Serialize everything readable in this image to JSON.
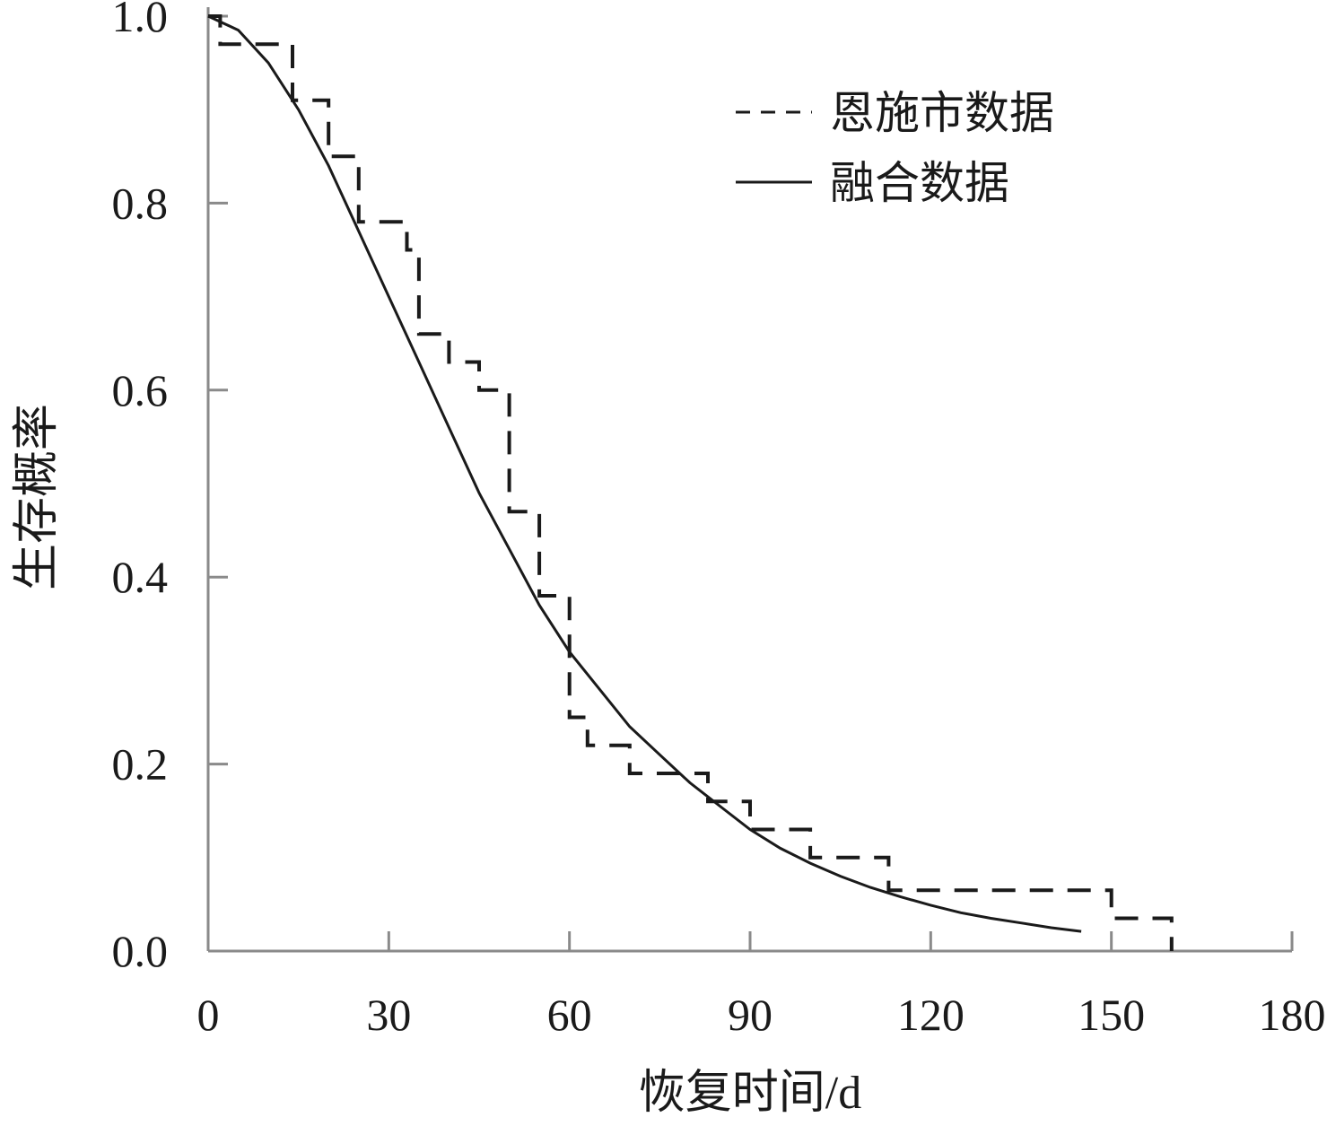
{
  "chart_data": {
    "type": "line",
    "xlabel": "恢复时间/d",
    "ylabel": "生存概率",
    "xlim": [
      0,
      180
    ],
    "ylim": [
      0,
      1.0
    ],
    "x_ticks": [
      "0",
      "30",
      "60",
      "90",
      "120",
      "150",
      "180"
    ],
    "y_ticks": [
      "0.0",
      "0.2",
      "0.4",
      "0.6",
      "0.8",
      "1.0"
    ],
    "x_tick_values": [
      0,
      30,
      60,
      90,
      120,
      150,
      180
    ],
    "y_tick_values": [
      0.0,
      0.2,
      0.4,
      0.6,
      0.8,
      1.0
    ],
    "grid": false,
    "legend_position": "top-right",
    "series": [
      {
        "name": "恩施市数据",
        "style": "dashed-step",
        "color": "#1a1a1a",
        "x": [
          0,
          2,
          2,
          14,
          14,
          20,
          20,
          25,
          25,
          33,
          33,
          35,
          35,
          40,
          40,
          45,
          45,
          50,
          50,
          55,
          55,
          60,
          60,
          63,
          63,
          70,
          70,
          83,
          83,
          90,
          90,
          100,
          100,
          113,
          113,
          150,
          150,
          160,
          160
        ],
        "y": [
          1.0,
          1.0,
          0.97,
          0.97,
          0.91,
          0.91,
          0.85,
          0.85,
          0.78,
          0.78,
          0.75,
          0.75,
          0.66,
          0.66,
          0.63,
          0.63,
          0.6,
          0.6,
          0.47,
          0.47,
          0.38,
          0.38,
          0.25,
          0.25,
          0.22,
          0.22,
          0.19,
          0.19,
          0.16,
          0.16,
          0.13,
          0.13,
          0.1,
          0.1,
          0.065,
          0.065,
          0.035,
          0.035,
          0.0
        ]
      },
      {
        "name": "融合数据",
        "style": "solid",
        "color": "#1a1a1a",
        "x": [
          0,
          5,
          10,
          15,
          20,
          25,
          30,
          35,
          40,
          45,
          50,
          55,
          60,
          65,
          70,
          75,
          80,
          85,
          90,
          95,
          100,
          105,
          110,
          115,
          120,
          125,
          130,
          135,
          140,
          145
        ],
        "y": [
          1.0,
          0.985,
          0.95,
          0.9,
          0.84,
          0.77,
          0.7,
          0.63,
          0.56,
          0.49,
          0.43,
          0.37,
          0.32,
          0.28,
          0.24,
          0.21,
          0.18,
          0.155,
          0.13,
          0.11,
          0.094,
          0.08,
          0.068,
          0.058,
          0.049,
          0.041,
          0.035,
          0.03,
          0.025,
          0.021
        ]
      }
    ]
  }
}
